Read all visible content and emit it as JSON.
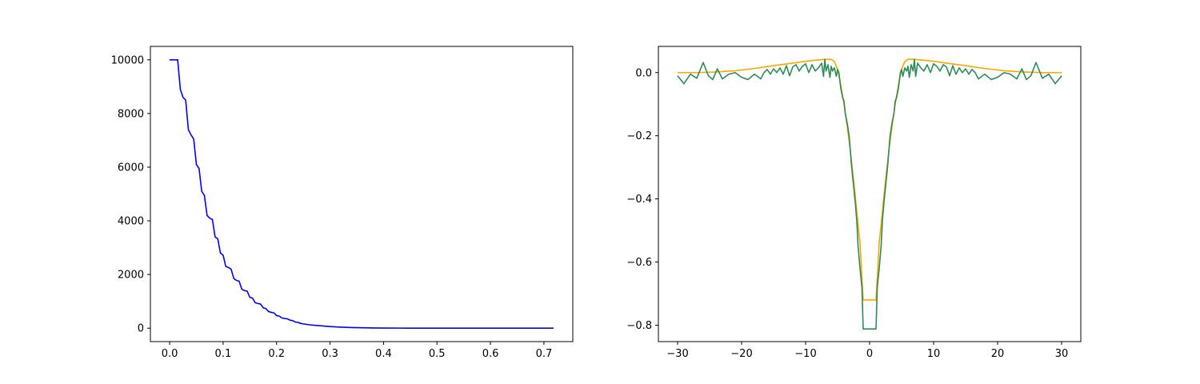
{
  "chart_data": [
    {
      "type": "line",
      "title": "",
      "xlabel": "",
      "ylabel": "",
      "xlim": [
        -0.036,
        0.754
      ],
      "ylim": [
        -500,
        10500
      ],
      "xticks": [
        0.0,
        0.1,
        0.2,
        0.3,
        0.4,
        0.5,
        0.6,
        0.7
      ],
      "xtick_labels": [
        "0.0",
        "0.1",
        "0.2",
        "0.3",
        "0.4",
        "0.5",
        "0.6",
        "0.7"
      ],
      "yticks": [
        0,
        2000,
        4000,
        6000,
        8000,
        10000
      ],
      "ytick_labels": [
        "0",
        "2000",
        "4000",
        "6000",
        "8000",
        "10000"
      ],
      "grid": false,
      "series": [
        {
          "color": "#0000ff",
          "x": [
            0.0,
            0.015,
            0.02,
            0.025,
            0.03,
            0.035,
            0.04,
            0.045,
            0.05,
            0.055,
            0.06,
            0.065,
            0.07,
            0.075,
            0.08,
            0.085,
            0.09,
            0.095,
            0.1,
            0.105,
            0.11,
            0.115,
            0.12,
            0.125,
            0.13,
            0.135,
            0.14,
            0.145,
            0.15,
            0.155,
            0.16,
            0.165,
            0.17,
            0.175,
            0.18,
            0.185,
            0.19,
            0.195,
            0.2,
            0.205,
            0.21,
            0.215,
            0.22,
            0.225,
            0.23,
            0.235,
            0.24,
            0.245,
            0.25,
            0.26,
            0.27,
            0.28,
            0.29,
            0.3,
            0.32,
            0.34,
            0.36,
            0.38,
            0.4,
            0.43,
            0.46,
            0.5,
            0.55,
            0.6,
            0.65,
            0.7,
            0.718
          ],
          "y": [
            10000,
            10000,
            8900,
            8600,
            8500,
            7400,
            7200,
            7050,
            6100,
            5950,
            5100,
            4950,
            4200,
            4100,
            4050,
            3400,
            3330,
            2800,
            2720,
            2300,
            2260,
            2200,
            1850,
            1780,
            1750,
            1450,
            1400,
            1380,
            1150,
            1120,
            950,
            920,
            900,
            760,
            730,
            620,
            590,
            570,
            470,
            450,
            380,
            360,
            350,
            300,
            280,
            230,
            215,
            180,
            160,
            130,
            110,
            95,
            75,
            60,
            40,
            25,
            15,
            10,
            5,
            3,
            2,
            1,
            0,
            0,
            0,
            0,
            0
          ]
        }
      ]
    },
    {
      "type": "line",
      "title": "",
      "xlabel": "",
      "ylabel": "",
      "xlim": [
        -33,
        33
      ],
      "ylim": [
        -0.852,
        0.083
      ],
      "xticks": [
        -30,
        -20,
        -10,
        0,
        10,
        20,
        30
      ],
      "xtick_labels": [
        "−30",
        "−20",
        "−10",
        "0",
        "10",
        "20",
        "30"
      ],
      "yticks": [
        0.0,
        -0.2,
        -0.4,
        -0.6,
        -0.8
      ],
      "ytick_labels": [
        "0.0",
        "−0.2",
        "−0.4",
        "−0.6",
        "−0.8"
      ],
      "grid": false,
      "series": [
        {
          "color": "#ffa500",
          "x": [
            -30,
            -27,
            -24,
            -21,
            -18,
            -15,
            -12,
            -10,
            -8,
            -7,
            -6,
            -5.5,
            -5,
            -4.5,
            -4,
            -3.5,
            -3,
            -2.5,
            -2,
            -1.5,
            -1.2,
            -1,
            1,
            1.2,
            1.5,
            2,
            2.5,
            3,
            3.5,
            4,
            4.5,
            5,
            5.5,
            6,
            7,
            8,
            10,
            12,
            15,
            18,
            21,
            24,
            27,
            30
          ],
          "y": [
            0.0,
            0.0,
            0.002,
            0.006,
            0.013,
            0.022,
            0.03,
            0.036,
            0.04,
            0.042,
            0.042,
            0.035,
            0.01,
            -0.04,
            -0.1,
            -0.17,
            -0.25,
            -0.34,
            -0.44,
            -0.54,
            -0.65,
            -0.72,
            -0.72,
            -0.65,
            -0.54,
            -0.44,
            -0.34,
            -0.25,
            -0.17,
            -0.1,
            -0.04,
            0.01,
            0.035,
            0.042,
            0.042,
            0.04,
            0.036,
            0.03,
            0.022,
            0.013,
            0.006,
            0.002,
            0.0,
            0.0
          ]
        },
        {
          "color": "#2e8b57",
          "x": [
            -30,
            -29,
            -28,
            -27,
            -26,
            -25.2,
            -24.5,
            -23.8,
            -23,
            -22,
            -21,
            -20,
            -19,
            -18,
            -17.5,
            -17,
            -16.5,
            -16,
            -15.5,
            -15,
            -14.5,
            -14,
            -13.5,
            -13,
            -12.5,
            -12,
            -11.5,
            -11,
            -10.5,
            -10,
            -9.5,
            -9,
            -8.5,
            -8,
            -7.5,
            -7.2,
            -7,
            -6.8,
            -6.5,
            -6.2,
            -6,
            -5.8,
            -5.5,
            -5.2,
            -5,
            -4.8,
            -4.5,
            -4.2,
            -4,
            -3.8,
            -3.5,
            -3.2,
            -3,
            -2.8,
            -2.5,
            -2.2,
            -2,
            -1.8,
            -1.5,
            -1.2,
            -1,
            1,
            1.2,
            1.5,
            1.8,
            2,
            2.2,
            2.5,
            2.8,
            3,
            3.2,
            3.5,
            3.8,
            4,
            4.2,
            4.5,
            4.8,
            5,
            5.2,
            5.5,
            5.8,
            6,
            6.2,
            6.5,
            6.8,
            7,
            7.2,
            7.5,
            8,
            8.5,
            9,
            9.5,
            10,
            10.5,
            11,
            11.5,
            12,
            12.5,
            13,
            13.5,
            14,
            14.5,
            15,
            15.5,
            16,
            16.5,
            17,
            17.5,
            18,
            19,
            20,
            21,
            22,
            23,
            23.8,
            24.5,
            25.2,
            26,
            27,
            28,
            29,
            30
          ],
          "y": [
            -0.01,
            -0.035,
            -0.005,
            -0.018,
            0.032,
            -0.01,
            -0.022,
            0.012,
            -0.02,
            -0.005,
            0.0,
            -0.015,
            -0.022,
            -0.005,
            -0.012,
            -0.02,
            0.0,
            0.01,
            -0.005,
            0.012,
            0.0,
            0.015,
            -0.005,
            0.022,
            -0.01,
            0.018,
            0.025,
            0.005,
            0.02,
            0.028,
            0.0,
            0.025,
            0.005,
            0.015,
            0.03,
            -0.012,
            0.042,
            0.005,
            0.025,
            -0.015,
            0.02,
            0.005,
            0.015,
            -0.012,
            0.01,
            0.0,
            -0.05,
            -0.08,
            -0.09,
            -0.13,
            -0.16,
            -0.2,
            -0.25,
            -0.3,
            -0.36,
            -0.42,
            -0.47,
            -0.55,
            -0.62,
            -0.68,
            -0.812,
            -0.812,
            -0.68,
            -0.62,
            -0.55,
            -0.47,
            -0.42,
            -0.36,
            -0.3,
            -0.25,
            -0.2,
            -0.16,
            -0.13,
            -0.09,
            -0.08,
            -0.05,
            0.0,
            0.01,
            -0.012,
            0.015,
            0.005,
            0.02,
            -0.015,
            0.025,
            0.005,
            0.042,
            -0.012,
            0.03,
            0.015,
            0.005,
            0.025,
            0.0,
            0.028,
            0.02,
            0.005,
            0.025,
            0.018,
            -0.01,
            0.022,
            -0.005,
            0.015,
            0.0,
            0.012,
            -0.005,
            0.01,
            0.0,
            -0.02,
            -0.012,
            -0.005,
            -0.022,
            -0.015,
            0.0,
            -0.005,
            -0.02,
            0.012,
            -0.022,
            -0.01,
            0.032,
            -0.018,
            -0.005,
            -0.035,
            -0.01
          ]
        }
      ]
    }
  ]
}
